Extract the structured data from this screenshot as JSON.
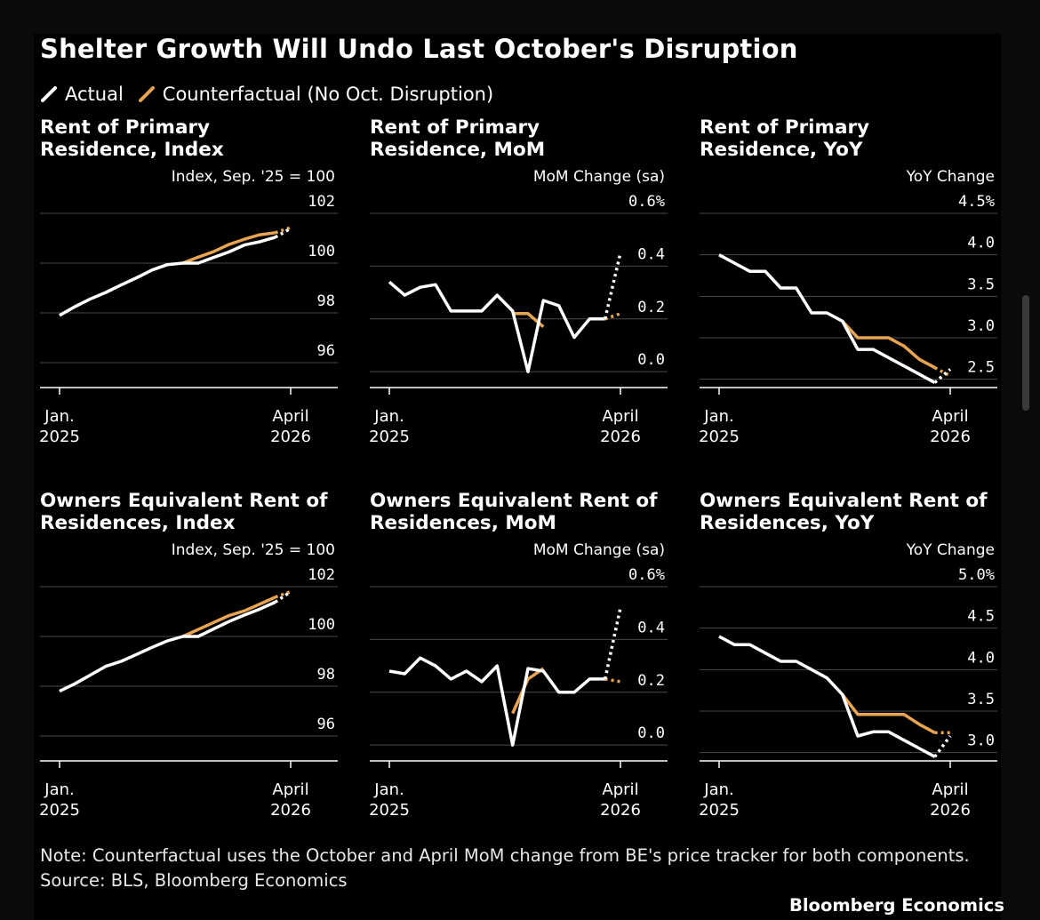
{
  "title": "Shelter Growth Will Undo Last October's Disruption",
  "legend": [
    {
      "label": "Actual",
      "color": "#ffffff"
    },
    {
      "label": "Counterfactual (No Oct. Disruption)",
      "color": "#e8a451"
    }
  ],
  "colors": {
    "actual": "#ffffff",
    "counterfactual": "#e8a451",
    "grid": "#4a4a4a",
    "background": "#000000"
  },
  "x_tick_labels": {
    "start": [
      "Jan.",
      "2025"
    ],
    "end": [
      "April",
      "2026"
    ]
  },
  "note": "Note: Counterfactual uses the October and April MoM change from BE's price tracker for both components.",
  "source": "Source: BLS, Bloomberg Economics",
  "brand": "Bloomberg Economics",
  "chart_data": [
    {
      "type": "line",
      "title": "Rent of Primary Residence, Index",
      "ylabel": "Index, Sep. '25 = 100",
      "ylim": [
        95,
        102
      ],
      "yticks": [
        96,
        98,
        100,
        102
      ],
      "ytick_labels": [
        "96",
        "98",
        "100",
        "102"
      ],
      "x": [
        "2025-01",
        "2025-02",
        "2025-03",
        "2025-04",
        "2025-05",
        "2025-06",
        "2025-07",
        "2025-08",
        "2025-09",
        "2025-10",
        "2025-11",
        "2025-12",
        "2026-01",
        "2026-02",
        "2026-03",
        "2026-04"
      ],
      "series": [
        {
          "name": "Actual",
          "values": [
            97.9,
            98.25,
            98.56,
            98.82,
            99.12,
            99.41,
            99.72,
            99.94,
            100.0,
            100.0,
            100.23,
            100.45,
            100.73,
            100.86,
            101.04,
            101.39
          ],
          "dashed_from": 14
        },
        {
          "name": "Counterfactual (No Oct. Disruption)",
          "values": [
            null,
            null,
            null,
            null,
            null,
            null,
            null,
            null,
            100.0,
            100.24,
            100.46,
            100.75,
            100.96,
            101.14,
            101.22,
            101.43
          ],
          "dashed_from": 14
        }
      ],
      "grid": true
    },
    {
      "type": "line",
      "title": "Rent of Primary Residence, MoM",
      "ylabel": "MoM Change (sa)",
      "ylim": [
        -0.06,
        0.6
      ],
      "yticks": [
        0.0,
        0.2,
        0.4,
        0.6
      ],
      "ytick_labels": [
        "0.0",
        "0.2",
        "0.4",
        "0.6%"
      ],
      "x": [
        "2025-01",
        "2025-02",
        "2025-03",
        "2025-04",
        "2025-05",
        "2025-06",
        "2025-07",
        "2025-08",
        "2025-09",
        "2025-10",
        "2025-11",
        "2025-12",
        "2026-01",
        "2026-02",
        "2026-03",
        "2026-04"
      ],
      "series": [
        {
          "name": "Actual",
          "values": [
            0.34,
            0.29,
            0.32,
            0.33,
            0.23,
            0.23,
            0.23,
            0.29,
            0.23,
            0.0,
            0.27,
            0.25,
            0.13,
            0.2,
            0.2,
            0.45
          ],
          "dashed_from": 14
        },
        {
          "name": "Counterfactual (No Oct. Disruption)",
          "values": [
            null,
            null,
            null,
            null,
            null,
            null,
            null,
            null,
            0.22,
            0.22,
            0.17,
            null,
            null,
            null,
            0.2,
            0.22
          ],
          "dashed_from": 14
        }
      ],
      "grid": true
    },
    {
      "type": "line",
      "title": "Rent of Primary Residence, YoY",
      "ylabel": "YoY Change",
      "ylim": [
        2.4,
        4.5
      ],
      "yticks": [
        2.5,
        3.0,
        3.5,
        4.0,
        4.5
      ],
      "ytick_labels": [
        "2.5",
        "3.0",
        "3.5",
        "4.0",
        "4.5%"
      ],
      "x": [
        "2025-01",
        "2025-02",
        "2025-03",
        "2025-04",
        "2025-05",
        "2025-06",
        "2025-07",
        "2025-08",
        "2025-09",
        "2025-10",
        "2025-11",
        "2025-12",
        "2026-01",
        "2026-02",
        "2026-03",
        "2026-04"
      ],
      "series": [
        {
          "name": "Actual",
          "values": [
            4.0,
            3.9,
            3.8,
            3.8,
            3.6,
            3.6,
            3.3,
            3.3,
            3.2,
            2.86,
            2.86,
            2.76,
            2.66,
            2.56,
            2.46,
            2.62
          ],
          "dashed_from": 14
        },
        {
          "name": "Counterfactual (No Oct. Disruption)",
          "values": [
            null,
            null,
            null,
            null,
            null,
            null,
            null,
            null,
            3.2,
            3.0,
            3.0,
            3.0,
            2.9,
            2.74,
            2.64,
            2.54
          ],
          "dashed_from": 14
        }
      ],
      "grid": true
    },
    {
      "type": "line",
      "title": "Owners Equivalent Rent of Residences, Index",
      "ylabel": "Index, Sep. '25 = 100",
      "ylim": [
        95,
        102
      ],
      "yticks": [
        96,
        98,
        100,
        102
      ],
      "ytick_labels": [
        "96",
        "98",
        "100",
        "102"
      ],
      "x": [
        "2025-01",
        "2025-02",
        "2025-03",
        "2025-04",
        "2025-05",
        "2025-06",
        "2025-07",
        "2025-08",
        "2025-09",
        "2025-10",
        "2025-11",
        "2025-12",
        "2026-01",
        "2026-02",
        "2026-03",
        "2026-04"
      ],
      "series": [
        {
          "name": "Actual",
          "values": [
            97.8,
            98.1,
            98.45,
            98.8,
            99.0,
            99.28,
            99.56,
            99.82,
            100.0,
            100.0,
            100.3,
            100.6,
            100.86,
            101.1,
            101.38,
            101.8
          ],
          "dashed_from": 14
        },
        {
          "name": "Counterfactual (No Oct. Disruption)",
          "values": [
            null,
            null,
            null,
            null,
            null,
            null,
            null,
            null,
            100.0,
            100.28,
            100.56,
            100.84,
            101.03,
            101.3,
            101.58,
            101.8
          ],
          "dashed_from": 14
        }
      ],
      "grid": true
    },
    {
      "type": "line",
      "title": "Owners Equivalent Rent of Residences, MoM",
      "ylabel": "MoM Change (sa)",
      "ylim": [
        -0.06,
        0.6
      ],
      "yticks": [
        0.0,
        0.2,
        0.4,
        0.6
      ],
      "ytick_labels": [
        "0.0",
        "0.2",
        "0.4",
        "0.6%"
      ],
      "x": [
        "2025-01",
        "2025-02",
        "2025-03",
        "2025-04",
        "2025-05",
        "2025-06",
        "2025-07",
        "2025-08",
        "2025-09",
        "2025-10",
        "2025-11",
        "2025-12",
        "2026-01",
        "2026-02",
        "2026-03",
        "2026-04"
      ],
      "series": [
        {
          "name": "Actual",
          "values": [
            0.28,
            0.27,
            0.33,
            0.3,
            0.25,
            0.28,
            0.24,
            0.3,
            0.0,
            0.29,
            0.28,
            0.2,
            0.2,
            0.25,
            0.25,
            0.52
          ],
          "dashed_from": 14
        },
        {
          "name": "Counterfactual (No Oct. Disruption)",
          "values": [
            null,
            null,
            null,
            null,
            null,
            null,
            null,
            null,
            0.12,
            0.25,
            0.29,
            null,
            null,
            null,
            0.25,
            0.24
          ],
          "dashed_from": 14
        }
      ],
      "grid": true
    },
    {
      "type": "line",
      "title": "Owners Equivalent Rent of Residences, YoY",
      "ylabel": "YoY Change",
      "ylim": [
        2.9,
        5.0
      ],
      "yticks": [
        3.0,
        3.5,
        4.0,
        4.5,
        5.0
      ],
      "ytick_labels": [
        "3.0",
        "3.5",
        "4.0",
        "4.5",
        "5.0%"
      ],
      "x": [
        "2025-01",
        "2025-02",
        "2025-03",
        "2025-04",
        "2025-05",
        "2025-06",
        "2025-07",
        "2025-08",
        "2025-09",
        "2025-10",
        "2025-11",
        "2025-12",
        "2026-01",
        "2026-02",
        "2026-03",
        "2026-04"
      ],
      "series": [
        {
          "name": "Actual",
          "values": [
            4.4,
            4.3,
            4.3,
            4.2,
            4.1,
            4.1,
            4.0,
            3.9,
            3.7,
            3.2,
            3.25,
            3.25,
            3.15,
            3.05,
            2.95,
            3.2
          ],
          "dashed_from": 14
        },
        {
          "name": "Counterfactual (No Oct. Disruption)",
          "values": [
            null,
            null,
            null,
            null,
            null,
            null,
            null,
            null,
            3.7,
            3.46,
            3.46,
            3.46,
            3.46,
            3.34,
            3.24,
            3.24
          ],
          "dashed_from": 14
        }
      ],
      "grid": true
    }
  ]
}
